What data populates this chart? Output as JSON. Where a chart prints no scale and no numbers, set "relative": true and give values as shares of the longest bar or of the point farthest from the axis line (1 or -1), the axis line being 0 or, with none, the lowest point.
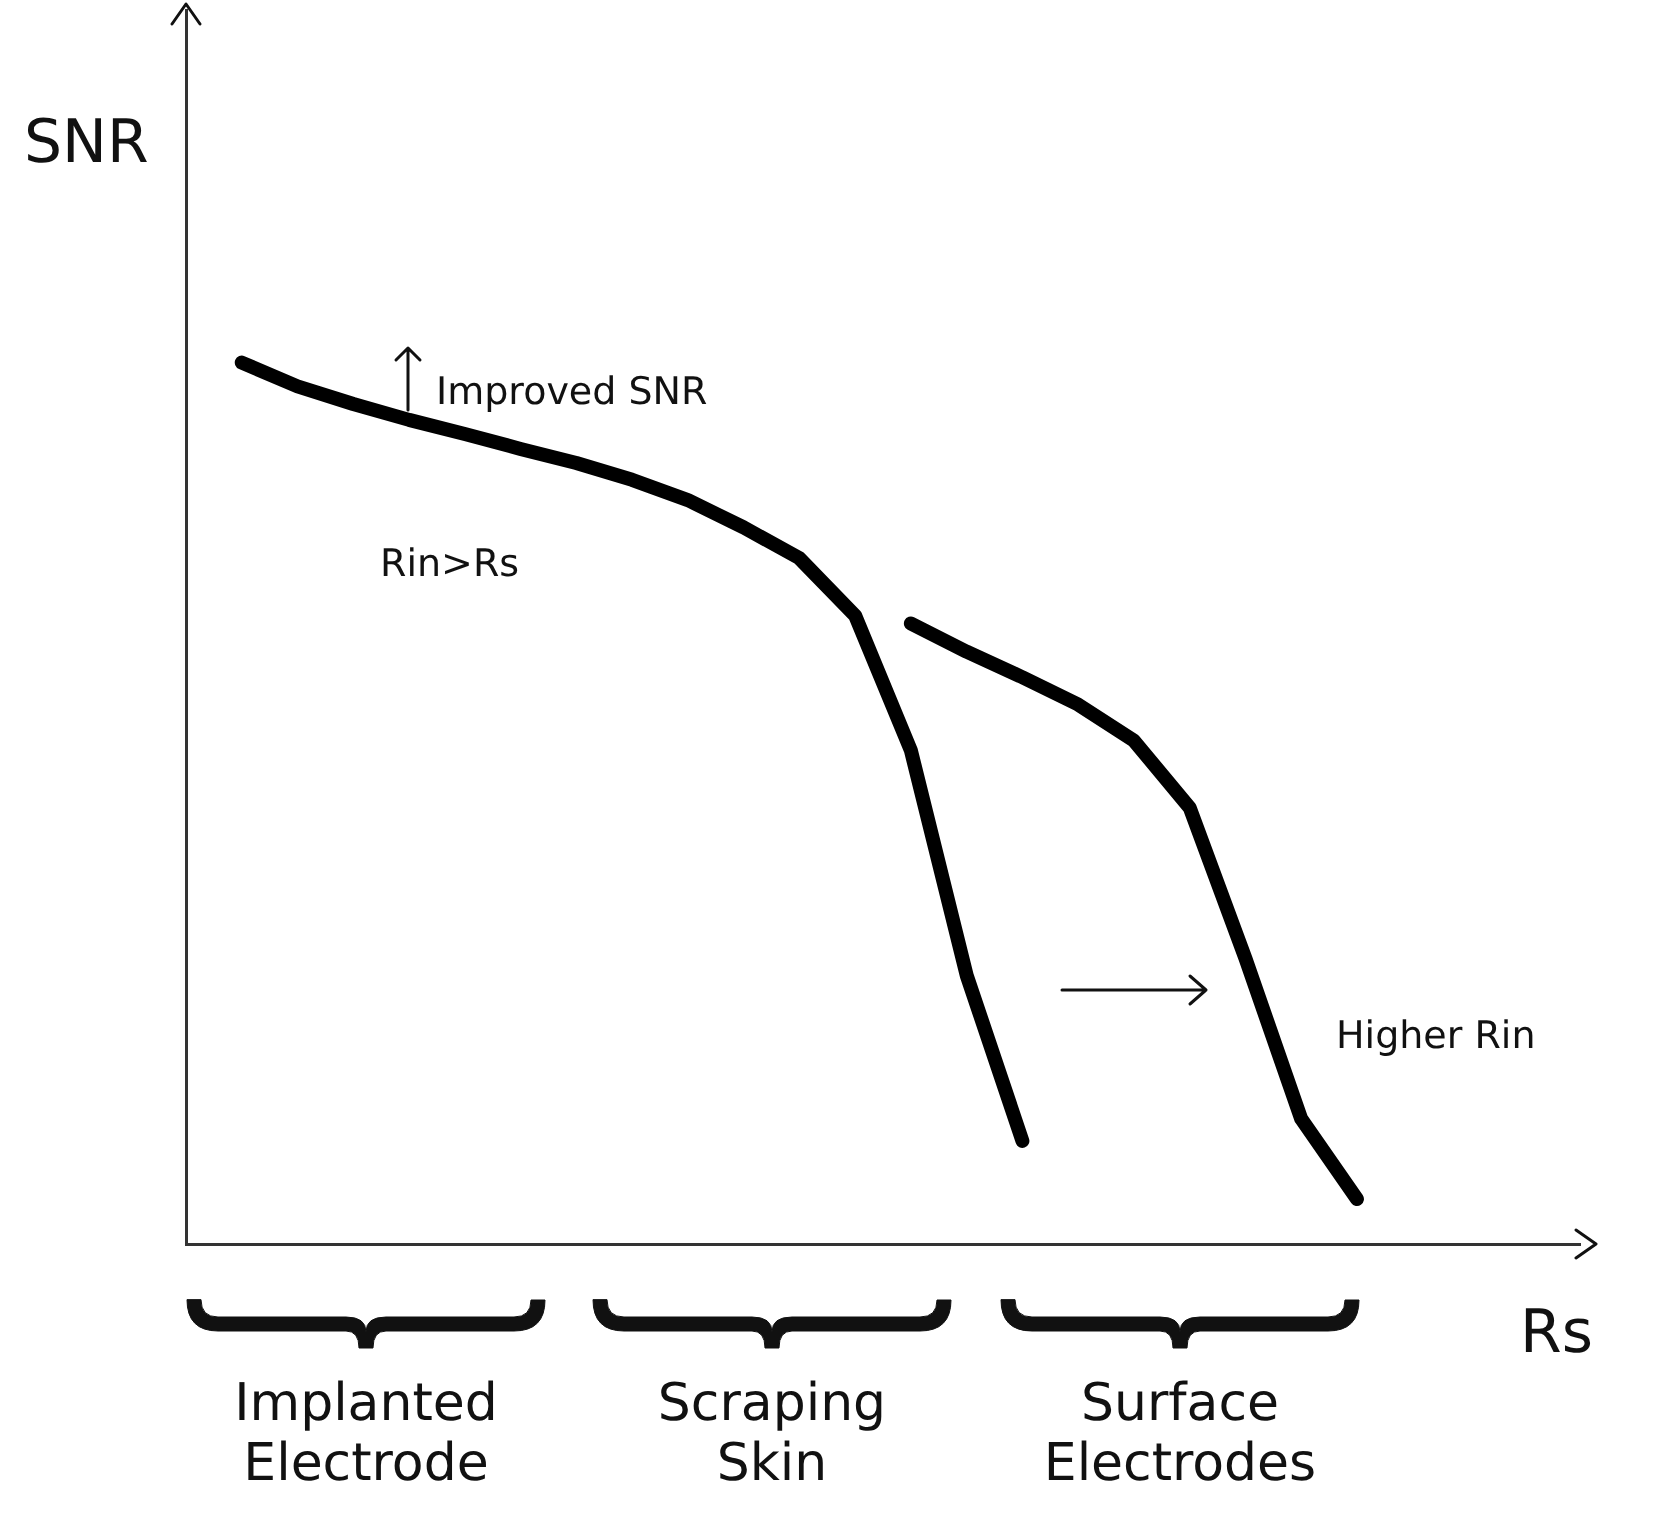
{
  "chart_data": {
    "type": "line",
    "relative": true,
    "xlabel": "Rs",
    "ylabel": "SNR",
    "legend": false,
    "grid": false,
    "marker": "none",
    "categories": [
      null,
      null,
      null,
      null,
      null,
      null,
      null,
      null,
      null,
      null,
      null,
      null,
      null,
      null,
      null,
      null,
      null,
      null,
      null,
      null,
      null,
      null,
      null,
      null,
      null,
      null
    ],
    "series": [
      {
        "color": "#000000",
        "values": [
          null,
          1.0,
          0.973,
          0.953,
          0.935,
          0.919,
          0.902,
          0.886,
          0.867,
          0.844,
          0.813,
          0.778,
          0.713,
          0.56,
          0.305,
          0.117,
          null,
          null,
          null,
          null,
          null,
          null,
          null,
          null,
          null,
          null
        ]
      },
      {
        "color": "#000000",
        "values": [
          null,
          null,
          null,
          null,
          null,
          null,
          null,
          null,
          null,
          null,
          null,
          null,
          null,
          0.704,
          0.672,
          0.643,
          0.612,
          0.571,
          0.495,
          0.324,
          0.142,
          0.051,
          null,
          null,
          null,
          null
        ]
      }
    ],
    "annotations": [
      "Improved SNR",
      "Rin>Rs",
      "Higher Rin",
      "Implanted Electrode",
      "Scraping Skin",
      "Surface Electrodes"
    ]
  }
}
